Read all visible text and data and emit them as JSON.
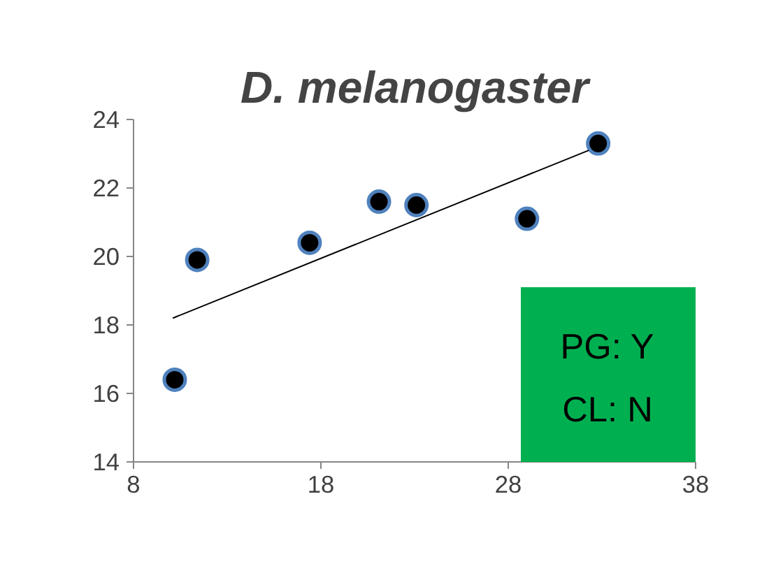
{
  "chart_data": {
    "type": "scatter",
    "title": "D. melanogaster",
    "series": [
      {
        "color": "#000000",
        "x": [
          10.2,
          11.4,
          17.4,
          21.1,
          23.1,
          29.0,
          32.8
        ],
        "values": [
          16.4,
          19.9,
          20.4,
          21.6,
          21.5,
          21.1,
          23.3
        ]
      },
      {
        "type": "line",
        "color": "#000000",
        "x": [
          10.1,
          32.3
        ],
        "values": [
          18.2,
          23.1
        ],
        "marker": "none"
      }
    ],
    "xlim": [
      8,
      38
    ],
    "xticks": [
      8,
      18,
      28,
      38
    ],
    "ylim": [
      14,
      24
    ],
    "yticks": [
      14,
      16,
      18,
      20,
      22,
      24
    ],
    "grid": false,
    "marker": "circle",
    "annotations": [
      "PG: Y",
      "CL: N"
    ]
  }
}
